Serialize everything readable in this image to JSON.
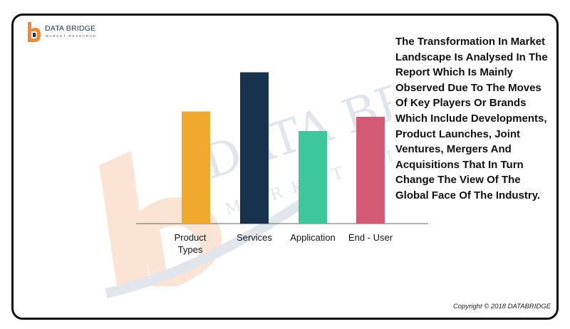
{
  "logo": {
    "name": "DATA BRIDGE",
    "tagline": "MARKET RESEARCH"
  },
  "watermark": {
    "line1": "DATA BRIDGE",
    "line2": "MARKET RESEARCH"
  },
  "description": "The Transformation In Market Landscape Is Analysed In The Report Which Is Mainly Observed Due To The Moves Of Key Players Or Brands Which Include Developments, Product Launches, Joint Ventures, Mergers And Acquisitions That In Turn Change The View Of The Global Face Of The Industry.",
  "copyright": "Copyright © 2018 DATABRIDGE",
  "chart_data": {
    "type": "bar",
    "categories": [
      [
        "Product",
        "Types"
      ],
      [
        "Services"
      ],
      [
        "Application"
      ],
      [
        "End - User"
      ]
    ],
    "values": [
      63,
      85,
      52,
      60
    ],
    "colors": [
      "#f0a92d",
      "#17324d",
      "#3ec79b",
      "#d25a72"
    ],
    "ylim": [
      0,
      100
    ],
    "grid": false,
    "legend": "none"
  }
}
